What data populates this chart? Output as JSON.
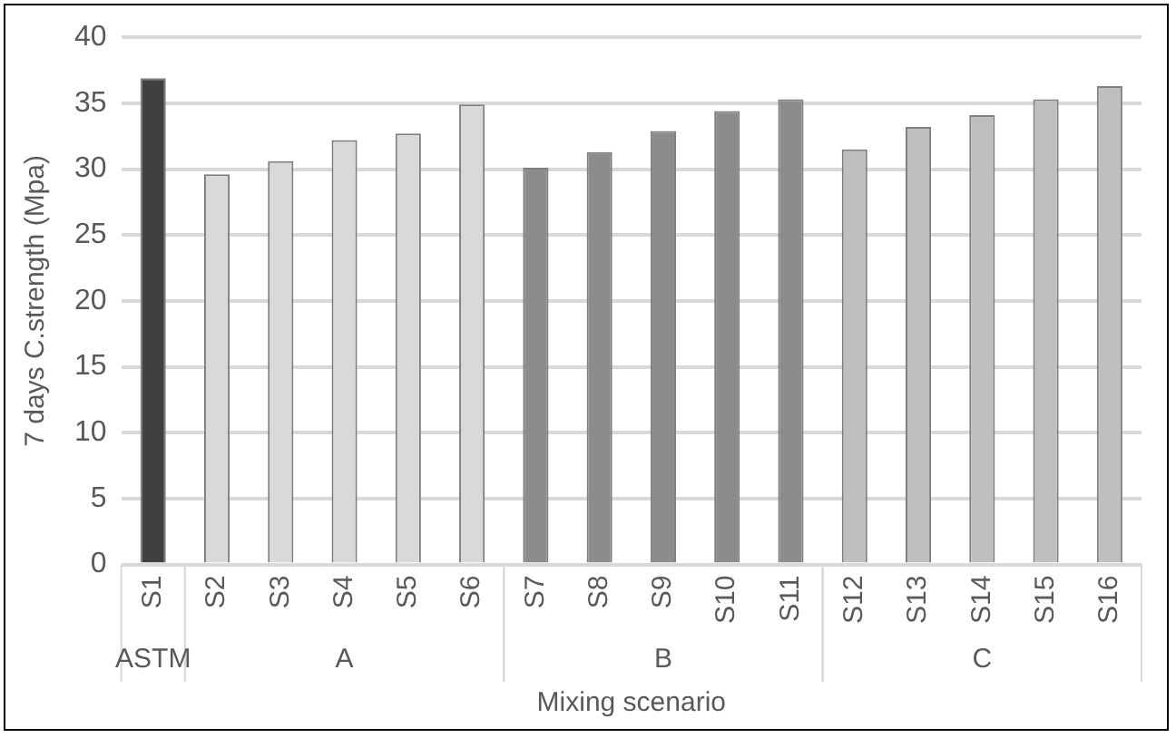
{
  "chart_data": {
    "type": "bar",
    "ylabel": "7 days C.strength (Mpa)",
    "xlabel": "Mixing scenario",
    "categories": [
      "S1",
      "S2",
      "S3",
      "S4",
      "S5",
      "S6",
      "S7",
      "S8",
      "S9",
      "S10",
      "S11",
      "S12",
      "S13",
      "S14",
      "S15",
      "S16"
    ],
    "values": [
      36.9,
      29.6,
      30.6,
      32.2,
      32.7,
      34.9,
      30.1,
      31.3,
      32.9,
      34.4,
      35.3,
      31.5,
      33.2,
      34.1,
      35.3,
      36.3
    ],
    "colors": [
      "#404040",
      "#d9d9d9",
      "#d9d9d9",
      "#d9d9d9",
      "#d9d9d9",
      "#d9d9d9",
      "#8c8c8c",
      "#8c8c8c",
      "#8c8c8c",
      "#8c8c8c",
      "#8c8c8c",
      "#bfbfbf",
      "#bfbfbf",
      "#bfbfbf",
      "#bfbfbf",
      "#bfbfbf"
    ],
    "ylim": [
      0,
      40
    ],
    "yticks": [
      0,
      5,
      10,
      15,
      20,
      25,
      30,
      35,
      40
    ],
    "grid": "y",
    "legend": false,
    "annotations": [
      "ASTM",
      "A",
      "B",
      "C"
    ]
  }
}
